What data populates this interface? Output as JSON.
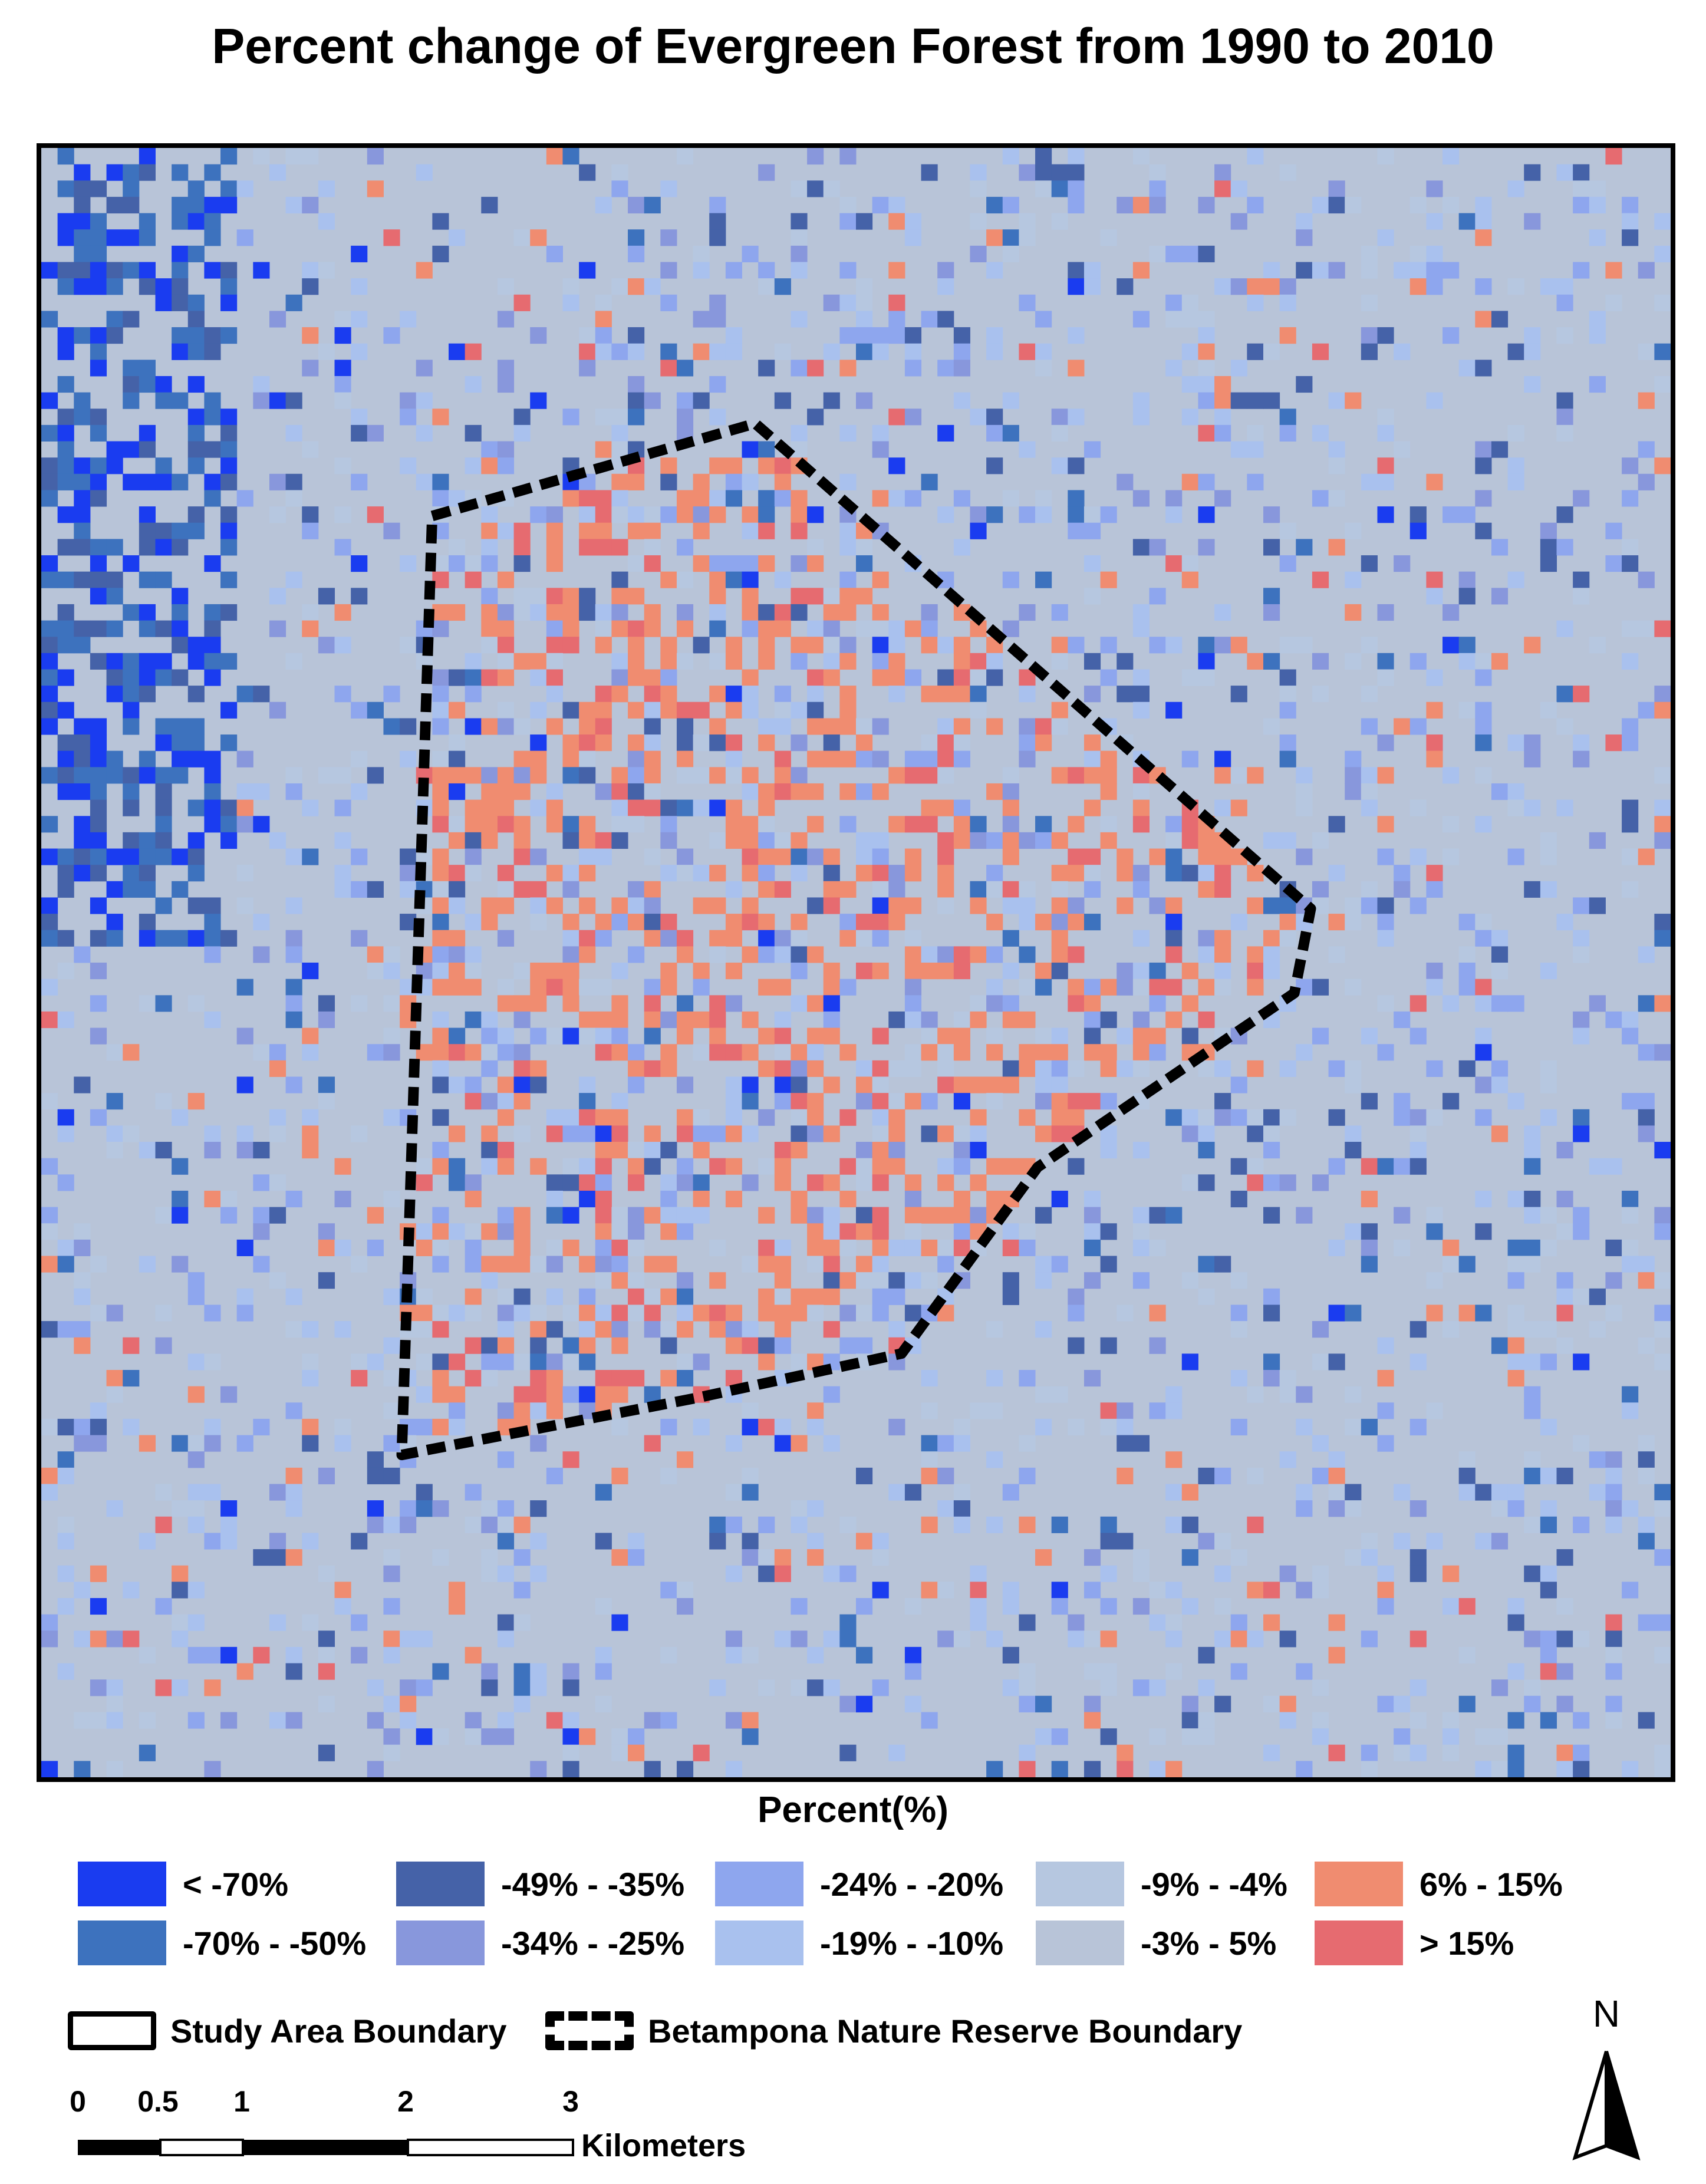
{
  "title": "Percent change of Evergreen Forest from 1990 to 2010",
  "legend": {
    "title": "Percent(%)",
    "classes": [
      {
        "label": "< -70%",
        "color": "#1a3cf0"
      },
      {
        "label": "-70% - -50%",
        "color": "#3d72be"
      },
      {
        "label": "-49% - -35%",
        "color": "#4562a8"
      },
      {
        "label": "-34% - -25%",
        "color": "#8897dc"
      },
      {
        "label": "-24% - -20%",
        "color": "#8ea6ee"
      },
      {
        "label": "-19% - -10%",
        "color": "#a9c1ee"
      },
      {
        "label": "-9% - -4%",
        "color": "#b6c7e0"
      },
      {
        "label": "-3% - 5%",
        "color": "#b8c4d8"
      },
      {
        "label": "6% - 15%",
        "color": "#f08c70"
      },
      {
        "label": "> 15%",
        "color": "#e66b70"
      }
    ]
  },
  "boundaries": {
    "study_area": "Study Area Boundary",
    "reserve": "Betampona Nature Reserve Boundary"
  },
  "scale_bar": {
    "ticks": [
      "0",
      "0.5",
      "1",
      "2",
      "3"
    ],
    "unit": "Kilometers"
  },
  "north_arrow": {
    "label": "N",
    "icon": "north-arrow-icon"
  }
}
